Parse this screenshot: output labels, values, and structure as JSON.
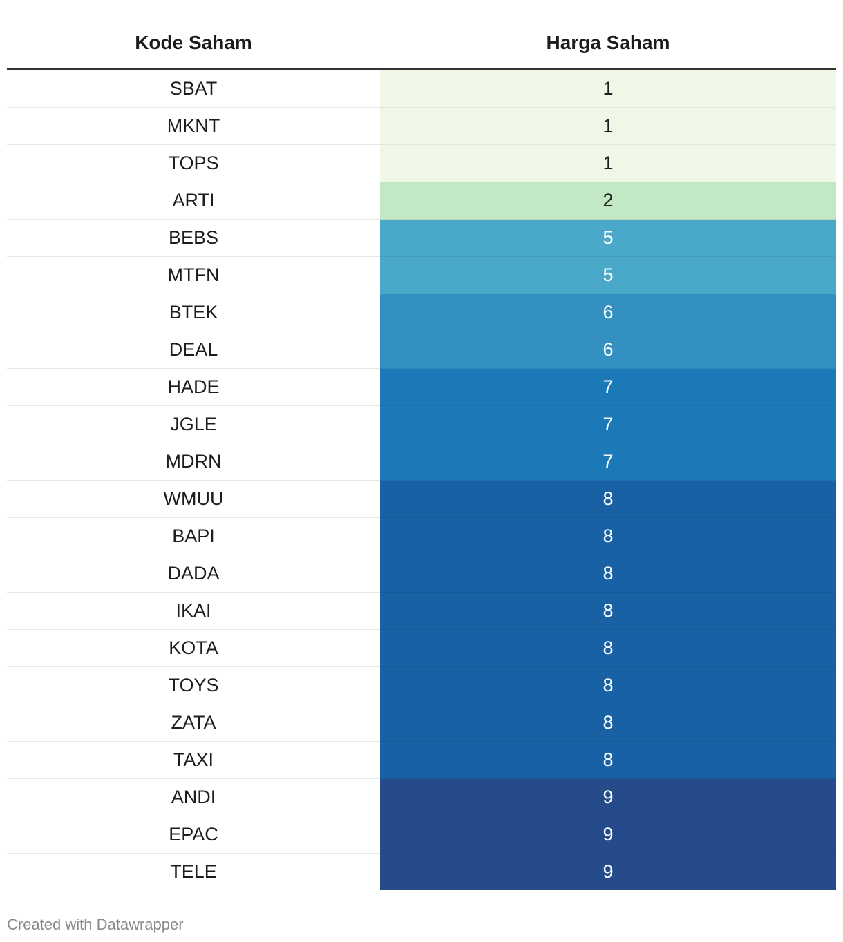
{
  "table": {
    "headers": [
      "Kode Saham",
      "Harga Saham"
    ],
    "rows": [
      {
        "kode": "SBAT",
        "harga": "1"
      },
      {
        "kode": "MKNT",
        "harga": "1"
      },
      {
        "kode": "TOPS",
        "harga": "1"
      },
      {
        "kode": "ARTI",
        "harga": "2"
      },
      {
        "kode": "BEBS",
        "harga": "5"
      },
      {
        "kode": "MTFN",
        "harga": "5"
      },
      {
        "kode": "BTEK",
        "harga": "6"
      },
      {
        "kode": "DEAL",
        "harga": "6"
      },
      {
        "kode": "HADE",
        "harga": "7"
      },
      {
        "kode": "JGLE",
        "harga": "7"
      },
      {
        "kode": "MDRN",
        "harga": "7"
      },
      {
        "kode": "WMUU",
        "harga": "8"
      },
      {
        "kode": "BAPI",
        "harga": "8"
      },
      {
        "kode": "DADA",
        "harga": "8"
      },
      {
        "kode": "IKAI",
        "harga": "8"
      },
      {
        "kode": "KOTA",
        "harga": "8"
      },
      {
        "kode": "TOYS",
        "harga": "8"
      },
      {
        "kode": "ZATA",
        "harga": "8"
      },
      {
        "kode": "TAXI",
        "harga": "8"
      },
      {
        "kode": "ANDI",
        "harga": "9"
      },
      {
        "kode": "EPAC",
        "harga": "9"
      },
      {
        "kode": "TELE",
        "harga": "9"
      }
    ],
    "value_colors": {
      "1": "#eff8e6",
      "2": "#c3e8c6",
      "5": "#4aa8c9",
      "6": "#3390c1",
      "7": "#1c79b7",
      "8": "#1761a4",
      "9": "#254b8b"
    },
    "light_text_color": "#1d1d1d",
    "dark_text_color": "#ffffff"
  },
  "chart_data": {
    "type": "table",
    "columns": [
      "Kode Saham",
      "Harga Saham"
    ],
    "categories": [
      "SBAT",
      "MKNT",
      "TOPS",
      "ARTI",
      "BEBS",
      "MTFN",
      "BTEK",
      "DEAL",
      "HADE",
      "JGLE",
      "MDRN",
      "WMUU",
      "BAPI",
      "DADA",
      "IKAI",
      "KOTA",
      "TOYS",
      "ZATA",
      "TAXI",
      "ANDI",
      "EPAC",
      "TELE"
    ],
    "values": [
      1,
      1,
      1,
      2,
      5,
      5,
      6,
      6,
      7,
      7,
      7,
      8,
      8,
      8,
      8,
      8,
      8,
      8,
      8,
      9,
      9,
      9
    ]
  },
  "footer": {
    "credit": "Created with Datawrapper"
  }
}
